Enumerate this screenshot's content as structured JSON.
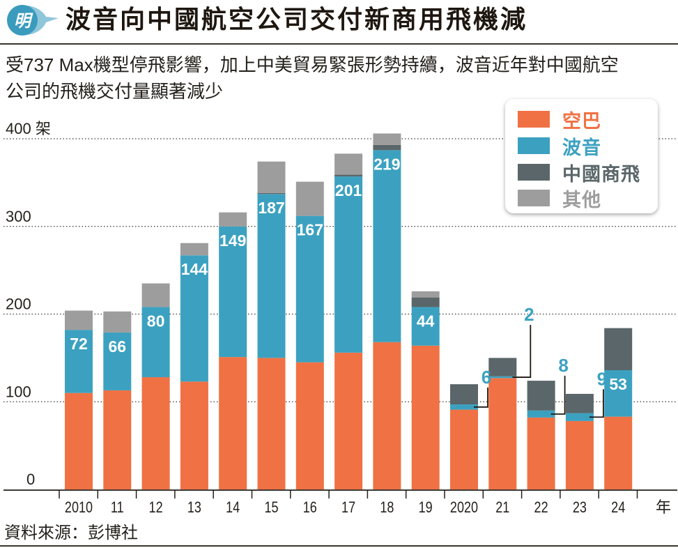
{
  "header": {
    "logo_char": "明",
    "title": "波音向中國航空公司交付新商用飛機減"
  },
  "subtitle": {
    "line1": "受737 Max機型停飛影響，加上中美貿易緊張形勢持續，波音近年對中國航空",
    "line2": "公司的飛機交付量顯著減少"
  },
  "colors": {
    "airbus": "#f07143",
    "boeing": "#3ca1c0",
    "comac": "#5a6669",
    "other": "#9e9d9e",
    "text": "#231f1a"
  },
  "legend": {
    "items": [
      {
        "label": "空巴",
        "key": "airbus"
      },
      {
        "label": "波音",
        "key": "boeing"
      },
      {
        "label": "中國商飛",
        "key": "comac"
      },
      {
        "label": "其他",
        "key": "other"
      }
    ]
  },
  "source": "資料來源：彭博社",
  "chart_data": {
    "type": "bar",
    "stacked": true,
    "title": "波音向中國航空公司交付新商用飛機減",
    "xlabel": "年",
    "ylabel": "架",
    "ylim": [
      0,
      400
    ],
    "yticks": [
      0,
      100,
      200,
      300,
      400
    ],
    "ytick_labels": [
      "0",
      "100",
      "200",
      "300",
      "400 架"
    ],
    "grid": true,
    "legend_position": "top-right",
    "categories": [
      "2010",
      "11",
      "12",
      "13",
      "14",
      "15",
      "16",
      "17",
      "18",
      "19",
      "2020",
      "21",
      "22",
      "23",
      "24"
    ],
    "series": [
      {
        "name": "空巴",
        "key": "airbus",
        "values": [
          110,
          113,
          128,
          123,
          151,
          150,
          145,
          156,
          168,
          164,
          91,
          127,
          82,
          78,
          83
        ]
      },
      {
        "name": "波音",
        "key": "boeing",
        "values": [
          72,
          66,
          80,
          144,
          149,
          187,
          167,
          201,
          219,
          44,
          6,
          2,
          8,
          9,
          53
        ]
      },
      {
        "name": "中國商飛",
        "key": "comac",
        "values": [
          0,
          0,
          0,
          0,
          0,
          1,
          0,
          2,
          6,
          11,
          23,
          21,
          34,
          22,
          48
        ]
      },
      {
        "name": "其他",
        "key": "other",
        "values": [
          22,
          24,
          27,
          14,
          16,
          36,
          39,
          24,
          13,
          7,
          0,
          0,
          0,
          0,
          0
        ]
      }
    ],
    "data_labels": {
      "series": "波音",
      "values": [
        "72",
        "66",
        "80",
        "144",
        "149",
        "187",
        "167",
        "201",
        "219",
        "44",
        "6",
        "2",
        "8",
        "9",
        "53"
      ],
      "inside": [
        true,
        true,
        true,
        true,
        true,
        true,
        true,
        true,
        true,
        true,
        false,
        false,
        false,
        false,
        true
      ]
    }
  }
}
